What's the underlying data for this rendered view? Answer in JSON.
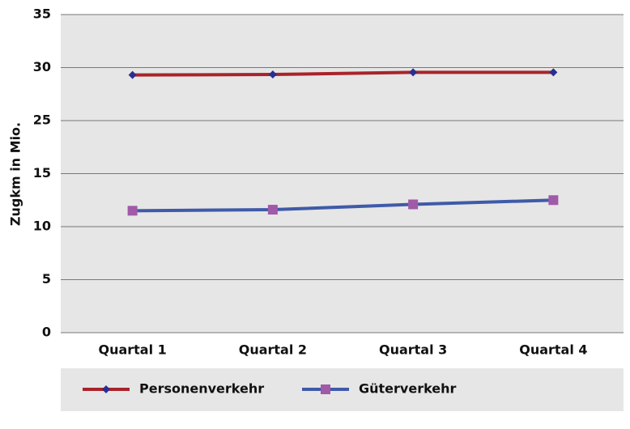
{
  "chart_data": {
    "type": "line",
    "y_label": "Zugkm in Mio.",
    "categories": [
      "Quartal 1",
      "Quartal 2",
      "Quartal 3",
      "Quartal 4"
    ],
    "series": [
      {
        "name": "Personenverkehr",
        "color": "#a8242a",
        "marker_color": "#2a2f8f",
        "marker": "diamond",
        "values": [
          29.3,
          29.35,
          29.55,
          29.55
        ]
      },
      {
        "name": "Güterverkehr",
        "color": "#3f5aa8",
        "marker_color": "#a05aa8",
        "marker": "square",
        "values": [
          11.5,
          11.6,
          12.1,
          12.5
        ]
      }
    ],
    "ylim": [
      0,
      35
    ],
    "yticks": [
      0,
      5,
      10,
      15,
      25,
      30,
      35
    ],
    "grid": true,
    "legend": "bottom"
  }
}
